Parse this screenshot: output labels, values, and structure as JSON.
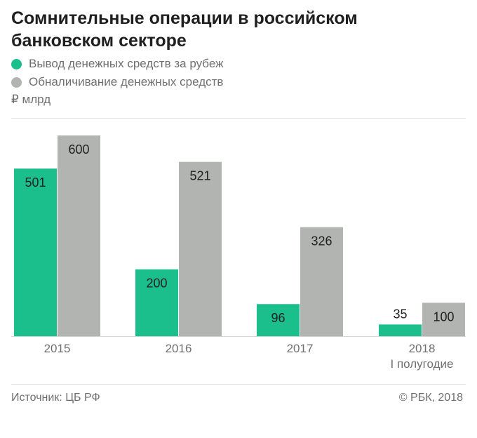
{
  "title": "Сомнительные операции в российском банковском секторе",
  "legend": [
    {
      "label": "Вывод денежных средств за рубеж",
      "color": "#1bbf8b"
    },
    {
      "label": "Обналичивание денежных средств",
      "color": "#b1b4b0"
    }
  ],
  "unit": "₽ млрд",
  "source": "Источник: ЦБ РФ",
  "copyright": "© РБК, 2018",
  "chart_data": {
    "type": "bar",
    "categories": [
      "2015",
      "2016",
      "2017",
      "2018"
    ],
    "category_sublabels": [
      "",
      "",
      "",
      "I полугодие"
    ],
    "series": [
      {
        "name": "Вывод денежных средств за рубеж",
        "values": [
          501,
          200,
          96,
          35
        ],
        "color": "#1bbf8b"
      },
      {
        "name": "Обналичивание денежных средств",
        "values": [
          600,
          521,
          326,
          100
        ],
        "color": "#b1b4b0"
      }
    ],
    "ylim": [
      0,
      600
    ],
    "xlabel": "",
    "ylabel": "₽ млрд",
    "grid": false
  }
}
